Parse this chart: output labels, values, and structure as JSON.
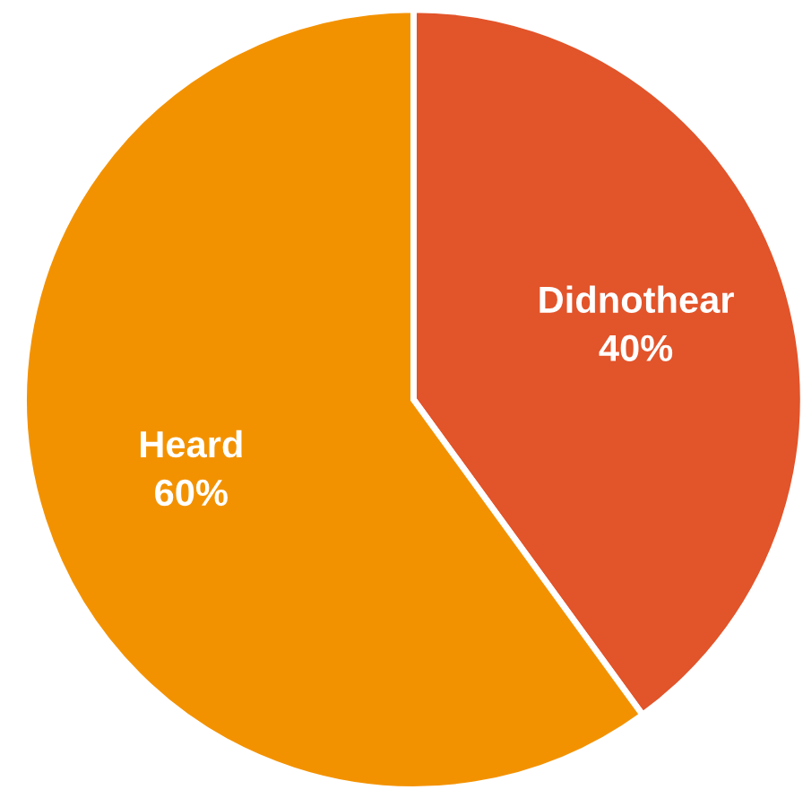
{
  "chart_data": {
    "type": "pie",
    "categories": [
      "Didnothear",
      "Heard"
    ],
    "values": [
      40,
      60
    ],
    "colors": [
      "#e2542a",
      "#f39200"
    ],
    "value_labels": [
      "40%",
      "60%"
    ]
  }
}
